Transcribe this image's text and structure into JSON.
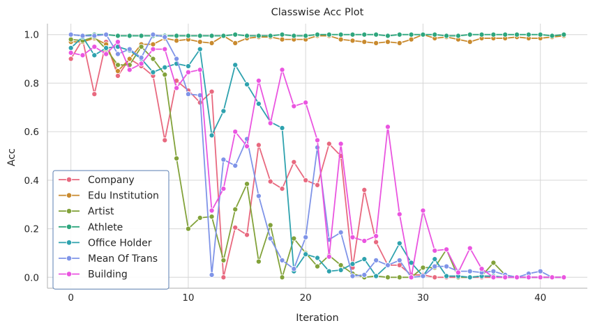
{
  "chart_data": {
    "type": "line",
    "title": "Classwise Acc Plot",
    "xlabel": "Iteration",
    "ylabel": "Acc",
    "xlim": [
      -2,
      44
    ],
    "ylim": [
      -0.045,
      1.045
    ],
    "xticks": [
      0,
      10,
      20,
      30,
      40
    ],
    "yticks": [
      0.0,
      0.2,
      0.4,
      0.6,
      0.8,
      1.0
    ],
    "xtick_labels": [
      "0",
      "10",
      "20",
      "30",
      "40"
    ],
    "ytick_labels": [
      "0.0",
      "0.2",
      "0.4",
      "0.6",
      "0.8",
      "1.0"
    ],
    "grid": true,
    "legend_position": "bottom-left",
    "x": [
      0,
      1,
      2,
      3,
      4,
      5,
      6,
      7,
      8,
      9,
      10,
      11,
      12,
      13,
      14,
      15,
      16,
      17,
      18,
      19,
      20,
      21,
      22,
      23,
      24,
      25,
      26,
      27,
      28,
      29,
      30,
      31,
      32,
      33,
      34,
      35,
      36,
      37,
      38,
      39,
      40,
      41,
      42
    ],
    "series": [
      {
        "name": "Company",
        "color": "#e8697f",
        "values": [
          0.9,
          0.98,
          0.755,
          0.97,
          0.83,
          0.9,
          0.87,
          0.83,
          0.565,
          0.81,
          0.77,
          0.72,
          0.765,
          0.0,
          0.205,
          0.175,
          0.545,
          0.395,
          0.365,
          0.475,
          0.4,
          0.38,
          0.55,
          0.5,
          0.04,
          0.36,
          0.145,
          0.05,
          0.05,
          0.01,
          0.01,
          0.0,
          0.0,
          0.0,
          0.0,
          0.0,
          0.0,
          0.0,
          0.0,
          0.0,
          0.0,
          0.0,
          0.0
        ]
      },
      {
        "name": "Edu Institution",
        "color": "#c98a2e",
        "values": [
          0.97,
          0.97,
          0.985,
          0.96,
          0.85,
          0.9,
          0.96,
          0.96,
          0.985,
          0.975,
          0.98,
          0.97,
          0.965,
          0.995,
          0.965,
          0.985,
          0.99,
          0.99,
          0.98,
          0.98,
          0.98,
          0.995,
          0.995,
          0.98,
          0.975,
          0.97,
          0.965,
          0.97,
          0.965,
          0.98,
          1.0,
          0.985,
          0.99,
          0.98,
          0.97,
          0.985,
          0.985,
          0.985,
          0.99,
          0.985,
          0.985,
          0.99,
          0.995
        ]
      },
      {
        "name": "Artist",
        "color": "#82a23a",
        "values": [
          0.98,
          0.975,
          0.99,
          0.94,
          0.875,
          0.875,
          0.95,
          0.9,
          0.835,
          0.49,
          0.2,
          0.245,
          0.25,
          0.07,
          0.28,
          0.385,
          0.065,
          0.215,
          0.0,
          0.16,
          0.1,
          0.045,
          0.09,
          0.05,
          0.015,
          0.0,
          0.005,
          0.0,
          0.0,
          0.0,
          0.04,
          0.04,
          0.115,
          0.0,
          0.0,
          0.005,
          0.06,
          0.01,
          0.0,
          0.0,
          0.0,
          0.0,
          0.0
        ]
      },
      {
        "name": "Athlete",
        "color": "#2ea67d",
        "values": [
          1.0,
          0.995,
          1.0,
          1.0,
          0.995,
          0.995,
          0.995,
          0.995,
          0.995,
          0.995,
          0.995,
          0.995,
          0.995,
          0.995,
          1.0,
          0.995,
          0.995,
          0.995,
          1.0,
          0.995,
          0.995,
          1.0,
          1.0,
          1.0,
          1.0,
          1.0,
          1.0,
          0.995,
          1.0,
          1.0,
          1.0,
          1.0,
          0.995,
          0.995,
          1.0,
          1.0,
          1.0,
          1.0,
          1.0,
          1.0,
          1.0,
          0.995,
          1.0
        ]
      },
      {
        "name": "Office Holder",
        "color": "#2ea2ae",
        "values": [
          0.945,
          0.99,
          0.915,
          0.945,
          0.95,
          0.935,
          0.9,
          0.845,
          0.865,
          0.88,
          0.87,
          0.94,
          0.585,
          0.685,
          0.875,
          0.795,
          0.715,
          0.64,
          0.615,
          0.025,
          0.095,
          0.08,
          0.025,
          0.03,
          0.055,
          0.075,
          0.005,
          0.05,
          0.14,
          0.06,
          0.005,
          0.075,
          0.005,
          0.005,
          0.0,
          0.005,
          0.005,
          0.0,
          0.0,
          0.0,
          0.0,
          0.0,
          0.0
        ]
      },
      {
        "name": "Mean Of Trans",
        "color": "#7f94e8",
        "values": [
          1.0,
          0.995,
          0.995,
          1.0,
          0.92,
          0.94,
          0.905,
          1.0,
          0.99,
          0.9,
          0.755,
          0.75,
          0.01,
          0.485,
          0.46,
          0.57,
          0.335,
          0.16,
          0.07,
          0.035,
          0.165,
          0.535,
          0.155,
          0.185,
          0.005,
          0.01,
          0.07,
          0.05,
          0.07,
          0.0,
          0.005,
          0.045,
          0.045,
          0.025,
          0.025,
          0.02,
          0.025,
          0.01,
          0.0,
          0.015,
          0.025,
          0.0,
          0.0
        ]
      },
      {
        "name": "Building",
        "color": "#ea55e0",
        "values": [
          0.925,
          0.915,
          0.95,
          0.92,
          0.97,
          0.855,
          0.88,
          0.94,
          0.94,
          0.78,
          0.845,
          0.855,
          0.275,
          0.365,
          0.6,
          0.54,
          0.81,
          0.635,
          0.855,
          0.705,
          0.72,
          0.565,
          0.085,
          0.55,
          0.165,
          0.15,
          0.17,
          0.62,
          0.26,
          0.0,
          0.275,
          0.11,
          0.115,
          0.02,
          0.12,
          0.035,
          0.0,
          0.0,
          0.0,
          0.0,
          0.0,
          0.0,
          0.0
        ]
      }
    ]
  }
}
